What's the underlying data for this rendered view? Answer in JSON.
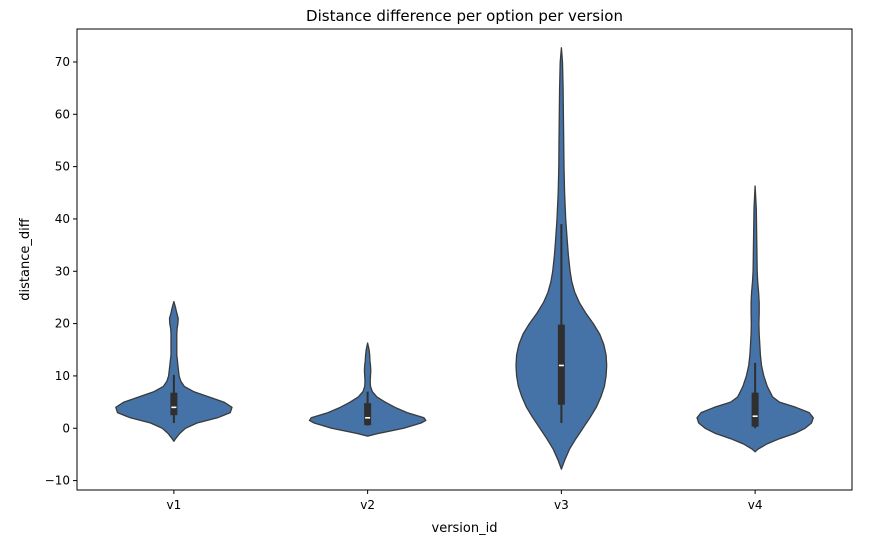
{
  "chart_data": {
    "type": "violin",
    "title": "Distance difference per option per version",
    "xlabel": "version_id",
    "ylabel": "distance_diff",
    "ylim": [
      -11.8,
      76.3
    ],
    "yticks": [
      -10,
      0,
      10,
      20,
      30,
      40,
      50,
      60,
      70
    ],
    "ytick_labels": [
      "−10",
      "0",
      "10",
      "20",
      "30",
      "40",
      "50",
      "60",
      "70"
    ],
    "categories": [
      "v1",
      "v2",
      "v3",
      "v4"
    ],
    "colors": {
      "fill": "#4572a7",
      "edge": "#3a3a3a",
      "box": "#2f2f2f",
      "median": "#ffffff"
    },
    "grid": false,
    "violins": [
      {
        "category": "v1",
        "min": -2.5,
        "max": 24.2,
        "whisker_low": 1.0,
        "q1": 2.5,
        "median": 4.0,
        "q3": 6.8,
        "whisker_high": 10.2,
        "profile": [
          [
            -2.5,
            0.0
          ],
          [
            -2.0,
            0.03
          ],
          [
            -1.0,
            0.1
          ],
          [
            0.0,
            0.2
          ],
          [
            1.0,
            0.4
          ],
          [
            2.0,
            0.75
          ],
          [
            3.0,
            0.97
          ],
          [
            4.0,
            1.0
          ],
          [
            5.0,
            0.86
          ],
          [
            6.0,
            0.6
          ],
          [
            7.0,
            0.34
          ],
          [
            8.0,
            0.18
          ],
          [
            9.0,
            0.12
          ],
          [
            10.0,
            0.09
          ],
          [
            11.0,
            0.08
          ],
          [
            12.0,
            0.07
          ],
          [
            13.0,
            0.06
          ],
          [
            14.0,
            0.05
          ],
          [
            15.0,
            0.05
          ],
          [
            16.0,
            0.05
          ],
          [
            17.0,
            0.05
          ],
          [
            18.0,
            0.05
          ],
          [
            19.0,
            0.055
          ],
          [
            20.0,
            0.07
          ],
          [
            21.0,
            0.075
          ],
          [
            22.0,
            0.05
          ],
          [
            23.0,
            0.03
          ],
          [
            24.2,
            0.0
          ]
        ]
      },
      {
        "category": "v2",
        "min": -1.5,
        "max": 16.3,
        "whisker_low": 0.5,
        "q1": 0.6,
        "median": 2.0,
        "q3": 4.8,
        "whisker_high": 7.0,
        "profile": [
          [
            -1.5,
            0.0
          ],
          [
            -1.0,
            0.18
          ],
          [
            0.0,
            0.62
          ],
          [
            1.0,
            0.92
          ],
          [
            1.5,
            1.0
          ],
          [
            2.0,
            0.97
          ],
          [
            3.0,
            0.68
          ],
          [
            4.0,
            0.47
          ],
          [
            5.0,
            0.3
          ],
          [
            6.0,
            0.16
          ],
          [
            7.0,
            0.08
          ],
          [
            8.0,
            0.05
          ],
          [
            9.0,
            0.045
          ],
          [
            10.0,
            0.05
          ],
          [
            11.0,
            0.055
          ],
          [
            12.0,
            0.05
          ],
          [
            13.0,
            0.04
          ],
          [
            14.0,
            0.035
          ],
          [
            15.0,
            0.025
          ],
          [
            16.3,
            0.0
          ]
        ]
      },
      {
        "category": "v3",
        "min": -7.8,
        "max": 72.7,
        "whisker_low": 1.0,
        "q1": 4.5,
        "median": 12.0,
        "q3": 19.8,
        "whisker_high": 39.0,
        "profile": [
          [
            -7.8,
            0.0
          ],
          [
            -6.0,
            0.06
          ],
          [
            -4.0,
            0.14
          ],
          [
            -2.0,
            0.25
          ],
          [
            0.0,
            0.37
          ],
          [
            2.0,
            0.49
          ],
          [
            4.0,
            0.6
          ],
          [
            6.0,
            0.68
          ],
          [
            8.0,
            0.74
          ],
          [
            10.0,
            0.77
          ],
          [
            12.0,
            0.78
          ],
          [
            14.0,
            0.77
          ],
          [
            16.0,
            0.73
          ],
          [
            18.0,
            0.66
          ],
          [
            20.0,
            0.55
          ],
          [
            22.0,
            0.42
          ],
          [
            24.0,
            0.31
          ],
          [
            26.0,
            0.23
          ],
          [
            28.0,
            0.18
          ],
          [
            30.0,
            0.15
          ],
          [
            33.0,
            0.12
          ],
          [
            36.0,
            0.1
          ],
          [
            40.0,
            0.075
          ],
          [
            45.0,
            0.055
          ],
          [
            50.0,
            0.045
          ],
          [
            55.0,
            0.04
          ],
          [
            60.0,
            0.035
          ],
          [
            65.0,
            0.03
          ],
          [
            70.0,
            0.02
          ],
          [
            72.7,
            0.0
          ]
        ]
      },
      {
        "category": "v4",
        "min": -4.5,
        "max": 46.3,
        "whisker_low": 0.0,
        "q1": 0.3,
        "median": 2.3,
        "q3": 6.8,
        "whisker_high": 12.5,
        "profile": [
          [
            -4.5,
            0.0
          ],
          [
            -4.0,
            0.05
          ],
          [
            -3.0,
            0.2
          ],
          [
            -2.0,
            0.42
          ],
          [
            -1.0,
            0.68
          ],
          [
            0.0,
            0.86
          ],
          [
            1.0,
            0.97
          ],
          [
            2.0,
            1.0
          ],
          [
            3.0,
            0.93
          ],
          [
            4.0,
            0.7
          ],
          [
            5.0,
            0.42
          ],
          [
            6.0,
            0.3
          ],
          [
            8.0,
            0.21
          ],
          [
            10.0,
            0.15
          ],
          [
            12.0,
            0.11
          ],
          [
            14.0,
            0.09
          ],
          [
            16.0,
            0.08
          ],
          [
            18.0,
            0.07
          ],
          [
            20.0,
            0.065
          ],
          [
            22.0,
            0.07
          ],
          [
            24.0,
            0.07
          ],
          [
            26.0,
            0.06
          ],
          [
            28.0,
            0.045
          ],
          [
            30.0,
            0.035
          ],
          [
            34.0,
            0.03
          ],
          [
            38.0,
            0.025
          ],
          [
            42.0,
            0.02
          ],
          [
            46.3,
            0.0
          ]
        ]
      }
    ]
  }
}
